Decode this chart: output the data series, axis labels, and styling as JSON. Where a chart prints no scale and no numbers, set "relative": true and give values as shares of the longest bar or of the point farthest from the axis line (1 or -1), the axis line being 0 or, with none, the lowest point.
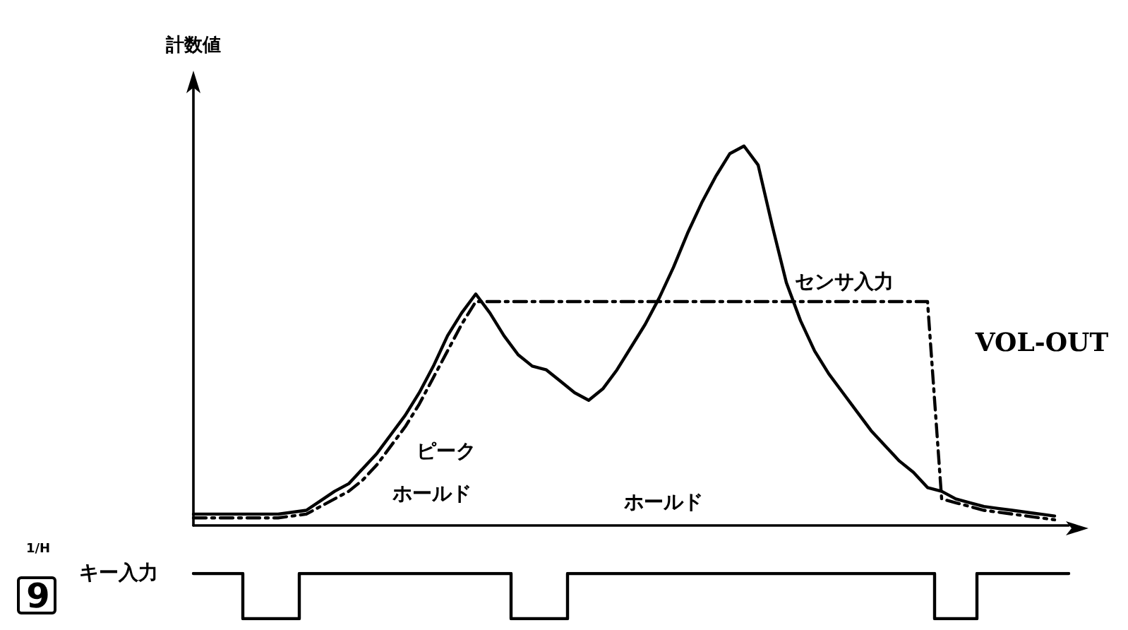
{
  "chart_data": [
    {
      "type": "line",
      "relative": true,
      "ylabel": "計数値",
      "grid": false,
      "marker": "none",
      "categories": [
        null,
        null,
        null,
        null,
        null,
        null,
        null,
        null,
        null,
        null,
        null,
        null,
        null,
        null,
        null,
        null,
        null,
        null,
        null,
        null,
        null,
        null,
        null,
        null,
        null,
        null,
        null,
        null,
        null,
        null,
        null,
        null,
        null,
        null,
        null,
        null,
        null,
        null,
        null,
        null,
        null,
        null,
        null,
        null,
        null,
        null,
        null,
        null,
        null,
        null,
        null,
        null,
        null,
        null,
        null,
        null,
        null,
        null,
        null,
        null,
        null,
        null,
        null
      ],
      "series": [
        {
          "name": "センサ入力",
          "color": "#000000",
          "line_style": "solid",
          "values": [
            0.03,
            0.03,
            0.03,
            0.03,
            0.03,
            0.03,
            0.03,
            0.035,
            0.04,
            0.065,
            0.09,
            0.11,
            0.15,
            0.19,
            0.24,
            0.29,
            0.35,
            0.42,
            0.5,
            0.56,
            0.61,
            0.56,
            0.5,
            0.45,
            0.42,
            0.41,
            0.38,
            0.35,
            0.33,
            0.36,
            0.41,
            0.47,
            0.53,
            0.6,
            0.68,
            0.77,
            0.85,
            0.92,
            0.98,
            1,
            0.95,
            0.79,
            0.64,
            0.54,
            0.46,
            0.4,
            0.35,
            0.3,
            0.25,
            0.21,
            0.17,
            0.14,
            0.1,
            0.09,
            0.07,
            0.06,
            0.05,
            0.045,
            0.04,
            0.035,
            0.03,
            0.025,
            null
          ]
        },
        {
          "color": "#000000",
          "line_style": "dashdot",
          "values": [
            0.02,
            0.02,
            0.02,
            0.02,
            0.02,
            0.02,
            0.02,
            0.025,
            0.03,
            0.05,
            0.07,
            0.09,
            0.12,
            0.16,
            0.21,
            0.26,
            0.32,
            0.39,
            0.46,
            0.53,
            0.59,
            0.59,
            0.59,
            0.59,
            0.59,
            0.59,
            0.59,
            0.59,
            0.59,
            0.59,
            0.59,
            0.59,
            0.59,
            0.59,
            0.59,
            0.59,
            0.59,
            0.59,
            0.59,
            0.59,
            0.59,
            0.59,
            0.59,
            0.59,
            0.59,
            0.59,
            0.59,
            0.59,
            0.59,
            0.59,
            0.59,
            0.59,
            0.59,
            0.07,
            0.06,
            0.05,
            0.04,
            0.035,
            0.03,
            0.025,
            0.02,
            0.015,
            null
          ]
        }
      ],
      "annotations": [
        "ピーク",
        "ホールド",
        "ホールド",
        "VOL-OUT"
      ]
    },
    {
      "type": "step",
      "relative": true,
      "grid": false,
      "marker": "none",
      "categories": [
        null,
        null,
        null,
        null,
        null,
        null,
        null,
        null,
        null,
        null,
        null,
        null,
        null,
        null,
        null,
        null,
        null,
        null,
        null,
        null,
        null,
        null,
        null,
        null,
        null,
        null,
        null,
        null,
        null,
        null,
        null,
        null,
        null,
        null,
        null,
        null,
        null,
        null,
        null,
        null,
        null,
        null,
        null,
        null,
        null,
        null,
        null,
        null,
        null,
        null,
        null,
        null,
        null,
        null,
        null,
        null,
        null,
        null,
        null,
        null,
        null,
        null,
        null
      ],
      "series": [
        {
          "name": "キー入力",
          "color": "#000000",
          "line_style": "solid",
          "values": [
            1,
            1,
            1,
            1,
            0,
            0,
            0,
            0,
            1,
            1,
            1,
            1,
            1,
            1,
            1,
            1,
            1,
            1,
            1,
            1,
            1,
            1,
            1,
            0,
            0,
            0,
            0,
            1,
            1,
            1,
            1,
            1,
            1,
            1,
            1,
            1,
            1,
            1,
            1,
            1,
            1,
            1,
            1,
            1,
            1,
            1,
            1,
            1,
            1,
            1,
            1,
            1,
            1,
            0,
            0,
            0,
            1,
            1,
            1,
            1,
            1,
            1,
            1
          ]
        }
      ],
      "annotations": [
        "1/H",
        "9"
      ]
    }
  ]
}
